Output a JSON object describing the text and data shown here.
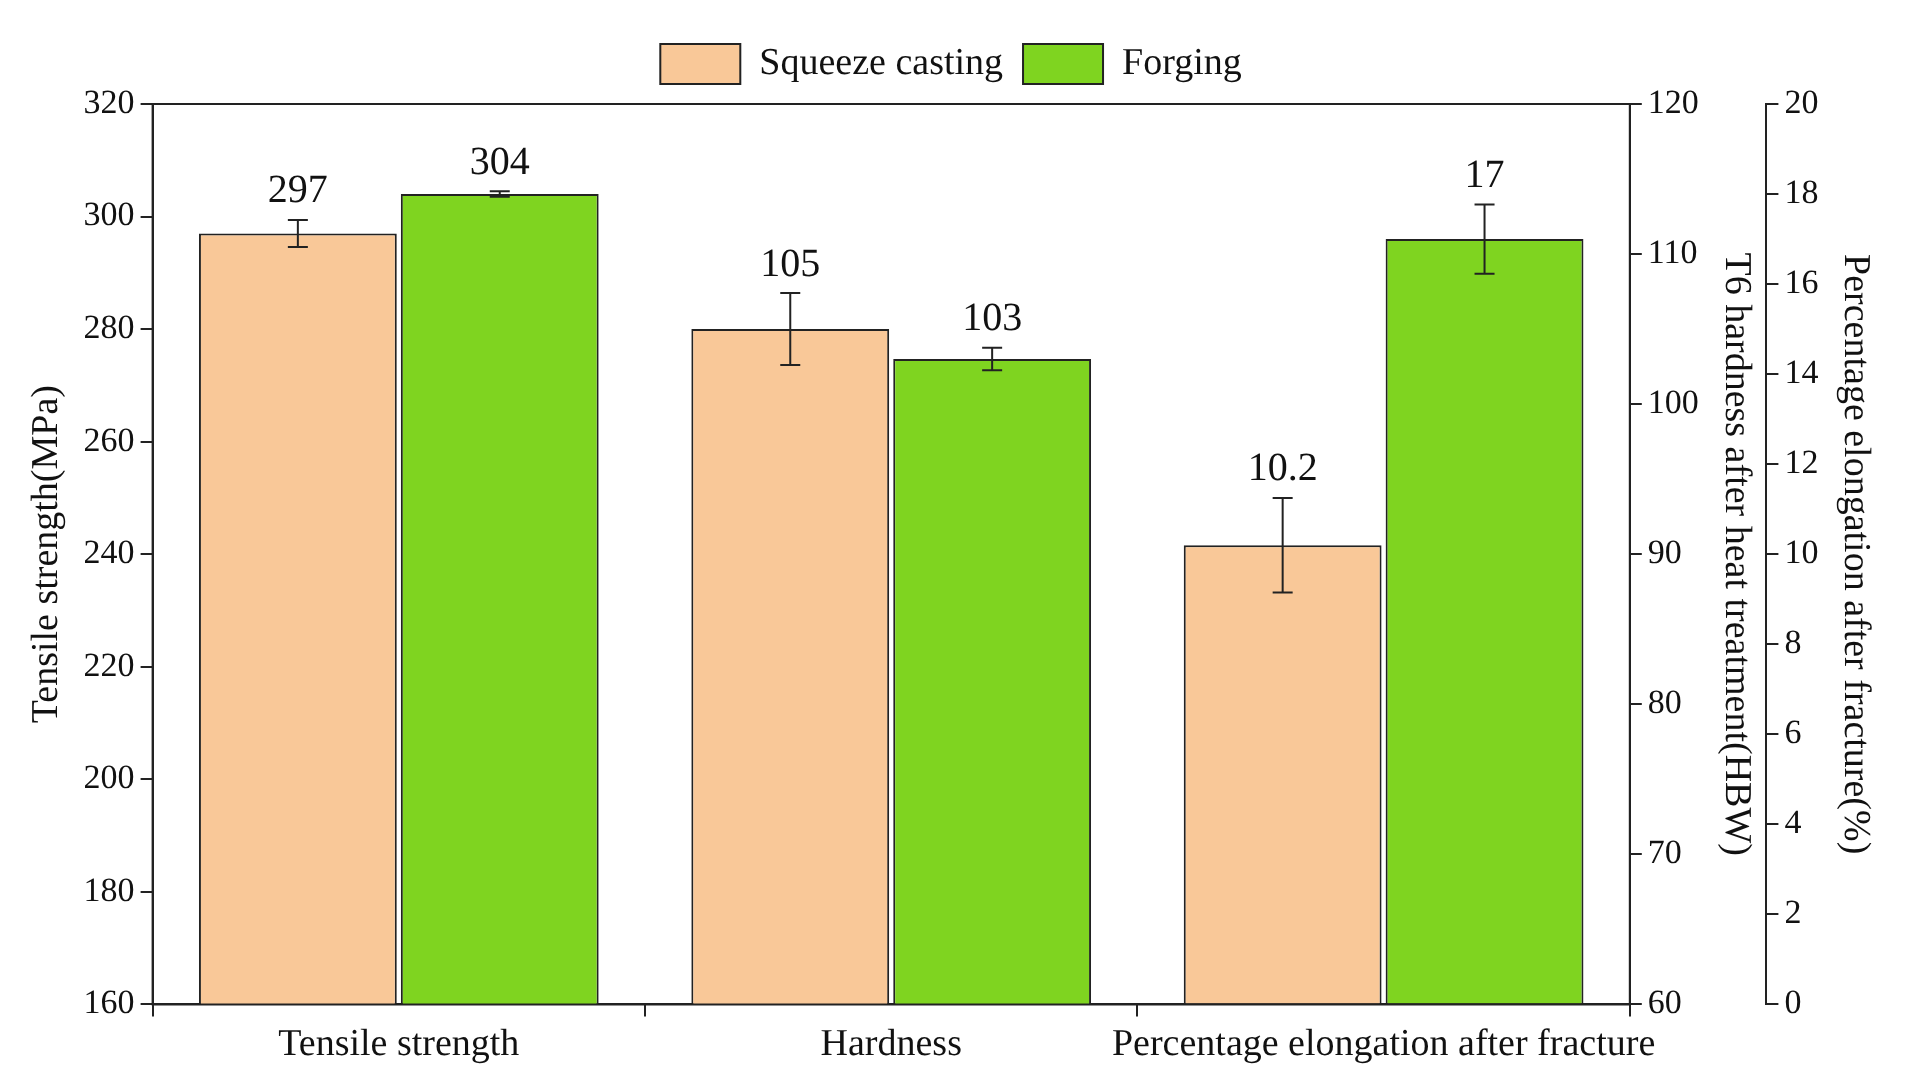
{
  "chart_data": {
    "type": "bar",
    "categories": [
      "Tensile strength",
      "Hardness",
      "Percentage elongation after fracture"
    ],
    "ylabel": "Tensile strength(MPa)",
    "y2label": "T6 hardness after heat treatment(HBW)",
    "y3label": "Percentage elongation after fracture(%)",
    "series": [
      {
        "name": "Squeeze casting",
        "color": "#f9c898",
        "axis": "y",
        "values": [
          297,
          null,
          null
        ],
        "errors": [
          2.4,
          null,
          null
        ]
      },
      {
        "name": "Forging",
        "color": "#7fd420",
        "axis": "y",
        "values": [
          304,
          null,
          null
        ],
        "errors": [
          0.5,
          null,
          null
        ]
      },
      {
        "color": "#f9c898",
        "axis": "y2",
        "values": [
          null,
          105,
          null
        ],
        "errors": [
          null,
          2.4,
          null
        ]
      },
      {
        "color": "#7fd420",
        "axis": "y2",
        "values": [
          null,
          103,
          null
        ],
        "errors": [
          null,
          0.75,
          null
        ]
      },
      {
        "color": "#f9c898",
        "axis": "y3",
        "values": [
          null,
          null,
          10.2
        ],
        "errors": [
          null,
          null,
          1.05
        ]
      },
      {
        "color": "#7fd420",
        "axis": "y3",
        "values": [
          null,
          null,
          17
        ],
        "errors": [
          null,
          null,
          0.77
        ]
      }
    ],
    "ylim": [
      160,
      320
    ],
    "yticks": [
      160,
      180,
      200,
      220,
      240,
      260,
      280,
      300,
      320
    ],
    "y2lim": [
      60,
      120
    ],
    "y2ticks": [
      60,
      70,
      80,
      90,
      100,
      110,
      120
    ],
    "y3lim": [
      0,
      20
    ],
    "y3ticks": [
      0,
      2,
      4,
      6,
      8,
      10,
      12,
      14,
      16,
      18,
      20
    ],
    "data_labels": true,
    "grid": false,
    "legend": "top"
  }
}
